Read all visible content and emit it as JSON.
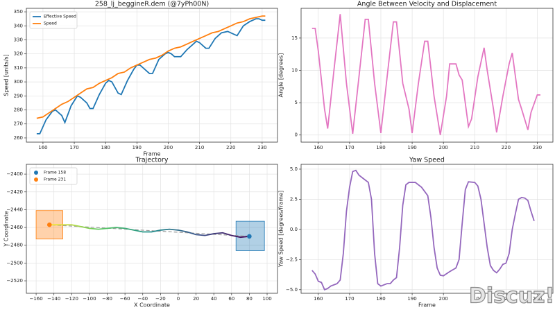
{
  "chart_data": [
    {
      "type": "line",
      "title": "258_lj_beggineR.dem (@7yPh00N)",
      "x_label": "Frame",
      "y_label": "Speed [units/s]",
      "xlim": [
        154.7,
        234.9
      ],
      "ylim": [
        257,
        352.5
      ],
      "xticks": [
        160,
        170,
        180,
        190,
        200,
        210,
        220,
        230
      ],
      "yticks": [
        260,
        270,
        280,
        290,
        300,
        310,
        320,
        330,
        340,
        350
      ],
      "grid": true,
      "legend": "upper left",
      "series": [
        {
          "name": "Effective Speed",
          "color": "#1f77b4",
          "x": [
            158,
            159,
            161,
            163,
            164,
            166,
            167,
            169,
            171,
            172,
            174,
            175,
            176,
            178,
            180,
            181,
            182,
            184,
            185,
            187,
            189,
            190,
            191,
            193,
            194,
            195,
            197,
            199,
            200,
            201,
            202,
            204,
            206,
            208,
            209,
            210,
            212,
            213,
            215,
            217,
            219,
            221,
            222,
            224,
            226,
            228,
            229,
            230,
            231
          ],
          "values": [
            263,
            263,
            273,
            279,
            280,
            276,
            271,
            283,
            290,
            289,
            285,
            281,
            281,
            291,
            299,
            301,
            300,
            292,
            291,
            301,
            309,
            312,
            312,
            308,
            306,
            306,
            316,
            320,
            321,
            320,
            318,
            318,
            323,
            327,
            329,
            328,
            324,
            324,
            331,
            335,
            336,
            334,
            333,
            340,
            343,
            345,
            345,
            344,
            344
          ]
        },
        {
          "name": "Speed",
          "color": "#ff7f0e",
          "x": [
            158,
            160,
            162,
            164,
            166,
            168,
            170,
            172,
            174,
            176,
            178,
            180,
            182,
            184,
            186,
            188,
            190,
            192,
            194,
            196,
            198,
            200,
            202,
            204,
            206,
            208,
            210,
            212,
            214,
            216,
            218,
            220,
            222,
            224,
            226,
            228,
            230,
            231
          ],
          "values": [
            274,
            275,
            278,
            281,
            284,
            286,
            289,
            292,
            295,
            296,
            299,
            301,
            303,
            306,
            307,
            310,
            312,
            314,
            316,
            317,
            319,
            322,
            324,
            325,
            327,
            329,
            331,
            333,
            335,
            336,
            338,
            340,
            342,
            343,
            345,
            346,
            347,
            347
          ]
        }
      ]
    },
    {
      "type": "line",
      "title": "Angle Between Velocity and Displacement",
      "y_label": "Angle [degrees]",
      "xlim": [
        154.5,
        235
      ],
      "ylim": [
        -1.1,
        19.6
      ],
      "xticks": [
        160,
        170,
        180,
        190,
        200,
        210,
        220,
        230
      ],
      "yticks": [
        0,
        5,
        10,
        15
      ],
      "grid": true,
      "series": [
        {
          "color": "#e377c2",
          "x": [
            158,
            159,
            160,
            162,
            163,
            165,
            167,
            169,
            171,
            173,
            175,
            176,
            178,
            180,
            182,
            184,
            185,
            187,
            189,
            190,
            192,
            194,
            195,
            197,
            199,
            201,
            202,
            204,
            205,
            206,
            208,
            209,
            211,
            213,
            214,
            216,
            217,
            219,
            221,
            222,
            224,
            225,
            227,
            228,
            230,
            231
          ],
          "values": [
            16.5,
            16.5,
            13,
            4,
            1,
            10,
            18.7,
            8,
            0.2,
            9,
            17.9,
            17.9,
            8,
            0.3,
            9,
            17.5,
            17.5,
            8,
            4,
            0.3,
            8,
            14.5,
            14.5,
            6,
            0,
            6,
            11,
            11,
            9.3,
            8.5,
            1.3,
            2.5,
            9,
            13.5,
            10,
            4,
            0.4,
            6,
            11,
            12.7,
            5.5,
            4,
            0.8,
            3.5,
            6.2,
            6.2
          ]
        }
      ]
    },
    {
      "type": "trajectory",
      "title": "Trajectory",
      "x_label": "X Coordinate",
      "y_label": "Y Coordinate",
      "xlim": [
        -171,
        111.7
      ],
      "ylim": [
        -2534,
        -2389
      ],
      "xticks": [
        {
          "value": -160,
          "label": "−160"
        },
        {
          "value": -140,
          "label": "−140"
        },
        {
          "value": -120,
          "label": "−120"
        },
        {
          "value": -100,
          "label": "−100"
        },
        {
          "value": -80,
          "label": "−80"
        },
        {
          "value": -60,
          "label": "−60"
        },
        {
          "value": -40,
          "label": "−40"
        },
        {
          "value": -20,
          "label": "−20"
        },
        0,
        20,
        40,
        60,
        80,
        100
      ],
      "yticks": [
        {
          "value": -2400,
          "label": "−2400"
        },
        {
          "value": -2420,
          "label": "−2420"
        },
        {
          "value": -2440,
          "label": "−2440"
        },
        {
          "value": -2460,
          "label": "−2460"
        },
        {
          "value": -2480,
          "label": "−2480"
        },
        {
          "value": -2500,
          "label": "−2500"
        },
        {
          "value": -2520,
          "label": "−2520"
        }
      ],
      "grid": true,
      "legend": "upper left",
      "path": {
        "x": [
          80,
          70,
          60,
          50,
          40,
          30,
          20,
          10,
          0,
          -10,
          -20,
          -30,
          -40,
          -50,
          -60,
          -70,
          -80,
          -90,
          -100,
          -110,
          -120,
          -130,
          -145
        ],
        "y": [
          -2470,
          -2471,
          -2469,
          -2466,
          -2467,
          -2469,
          -2468,
          -2465,
          -2463,
          -2462,
          -2463,
          -2465,
          -2465,
          -2463,
          -2461,
          -2460,
          -2461,
          -2462,
          -2461,
          -2459,
          -2457,
          -2457,
          -2457
        ]
      },
      "regions": [
        {
          "color": "#1f77b4",
          "xlim": [
            65,
            97
          ],
          "ylim": [
            -2486,
            -2453
          ]
        },
        {
          "color": "#ff7f0e",
          "xlim": [
            -160,
            -130
          ],
          "ylim": [
            -2473,
            -2441
          ]
        }
      ],
      "series": [
        {
          "name": "Frame 158",
          "color": "#1f77b4",
          "x": [
            80
          ],
          "values": [
            -2470
          ]
        },
        {
          "name": "Frame 231",
          "color": "#ff7f0e",
          "x": [
            -145
          ],
          "values": [
            -2457
          ]
        }
      ]
    },
    {
      "type": "line",
      "title": "Yaw Speed",
      "x_label": "Frame",
      "y_label": "Yaw Speed [degrees/frame]",
      "xlim": [
        154.5,
        235
      ],
      "ylim": [
        -5.3,
        5.4
      ],
      "xticks": [
        160,
        170,
        180,
        190,
        200,
        210,
        220,
        230
      ],
      "yticks": [
        {
          "value": -5,
          "label": "−5.0"
        },
        {
          "value": -2.5,
          "label": "−2.5"
        },
        {
          "value": 0,
          "label": "0.0"
        },
        {
          "value": 2.5,
          "label": "2.5"
        },
        {
          "value": 5,
          "label": "5.0"
        }
      ],
      "grid": true,
      "series": [
        {
          "color": "#9467bd",
          "x": [
            158,
            159,
            160,
            161,
            162,
            163,
            164,
            166,
            167,
            168,
            169,
            170,
            171,
            172,
            173,
            175,
            176,
            177,
            178,
            179,
            180,
            181,
            182,
            183,
            184,
            185,
            186,
            187,
            188,
            189,
            191,
            193,
            195,
            196,
            197,
            198,
            199,
            200,
            202,
            204,
            205,
            206,
            207,
            208,
            210,
            211,
            212,
            213,
            214,
            215,
            216,
            217,
            218,
            219,
            220,
            221,
            222,
            223,
            224,
            225,
            226,
            227,
            228,
            229
          ],
          "values": [
            -3.4,
            -3.7,
            -4.3,
            -4.4,
            -5,
            -4.9,
            -4.7,
            -4.5,
            -4.2,
            -2,
            1.5,
            3.5,
            4.8,
            4.9,
            4.5,
            4.1,
            3.9,
            2.5,
            -2,
            -4.5,
            -4.7,
            -4.6,
            -4.5,
            -4.5,
            -4.2,
            -4,
            -1.5,
            2,
            3.7,
            3.9,
            3.9,
            3.5,
            2.8,
            1,
            -1.5,
            -3.2,
            -3.8,
            -3.85,
            -3.5,
            -3.2,
            -2.5,
            0.5,
            3.3,
            3.95,
            3.9,
            3.6,
            2.5,
            0.5,
            -1.5,
            -3,
            -3.4,
            -3.6,
            -3.3,
            -2.9,
            -2.8,
            -2,
            0,
            1.3,
            2.5,
            2.65,
            2.6,
            2.4,
            1.5,
            0.7
          ]
        }
      ]
    }
  ],
  "watermark": "Discuz!"
}
